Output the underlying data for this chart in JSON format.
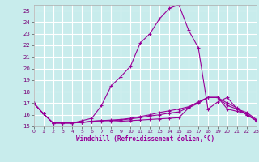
{
  "xlabel": "Windchill (Refroidissement éolien,°C)",
  "bg_color": "#c8ecec",
  "line_color": "#990099",
  "grid_color": "#ffffff",
  "xlim": [
    0,
    23
  ],
  "ylim": [
    15,
    25.5
  ],
  "xticks": [
    0,
    1,
    2,
    3,
    4,
    5,
    6,
    7,
    8,
    9,
    10,
    11,
    12,
    13,
    14,
    15,
    16,
    17,
    18,
    19,
    20,
    21,
    22,
    23
  ],
  "yticks": [
    15,
    16,
    17,
    18,
    19,
    20,
    21,
    22,
    23,
    24,
    25
  ],
  "lines": [
    {
      "x": [
        0,
        1,
        2,
        3,
        4,
        5,
        6,
        7,
        8,
        9,
        10,
        11,
        12,
        13,
        14,
        15,
        16,
        17,
        18,
        19,
        20,
        21,
        22,
        23
      ],
      "y": [
        17.0,
        16.1,
        15.3,
        15.3,
        15.3,
        15.5,
        15.7,
        16.8,
        18.5,
        19.3,
        20.2,
        22.2,
        23.0,
        24.3,
        25.2,
        25.5,
        23.3,
        21.8,
        16.5,
        17.1,
        17.5,
        16.5,
        16.0,
        15.5
      ]
    },
    {
      "x": [
        0,
        1,
        2,
        3,
        4,
        5,
        6,
        7,
        8,
        9,
        10,
        11,
        12,
        13,
        14,
        15,
        16,
        17,
        18,
        19,
        20,
        21,
        22,
        23
      ],
      "y": [
        17.0,
        16.1,
        15.3,
        15.3,
        15.3,
        15.35,
        15.4,
        15.4,
        15.4,
        15.45,
        15.5,
        15.55,
        15.6,
        15.65,
        15.7,
        15.75,
        16.6,
        17.0,
        17.5,
        17.5,
        16.5,
        16.3,
        16.1,
        15.5
      ]
    },
    {
      "x": [
        0,
        1,
        2,
        3,
        4,
        5,
        6,
        7,
        8,
        9,
        10,
        11,
        12,
        13,
        14,
        15,
        16,
        17,
        18,
        19,
        20,
        21,
        22,
        23
      ],
      "y": [
        17.0,
        16.1,
        15.3,
        15.3,
        15.3,
        15.35,
        15.45,
        15.5,
        15.5,
        15.55,
        15.65,
        15.75,
        15.9,
        16.0,
        16.15,
        16.25,
        16.65,
        17.1,
        17.5,
        17.5,
        16.8,
        16.5,
        16.2,
        15.6
      ]
    },
    {
      "x": [
        0,
        1,
        2,
        3,
        4,
        5,
        6,
        7,
        8,
        9,
        10,
        11,
        12,
        13,
        14,
        15,
        16,
        17,
        18,
        19,
        20,
        21,
        22,
        23
      ],
      "y": [
        17.0,
        16.1,
        15.3,
        15.3,
        15.3,
        15.35,
        15.45,
        15.5,
        15.55,
        15.6,
        15.7,
        15.85,
        16.0,
        16.2,
        16.35,
        16.5,
        16.7,
        17.1,
        17.5,
        17.5,
        17.0,
        16.6,
        16.0,
        15.5
      ]
    }
  ]
}
